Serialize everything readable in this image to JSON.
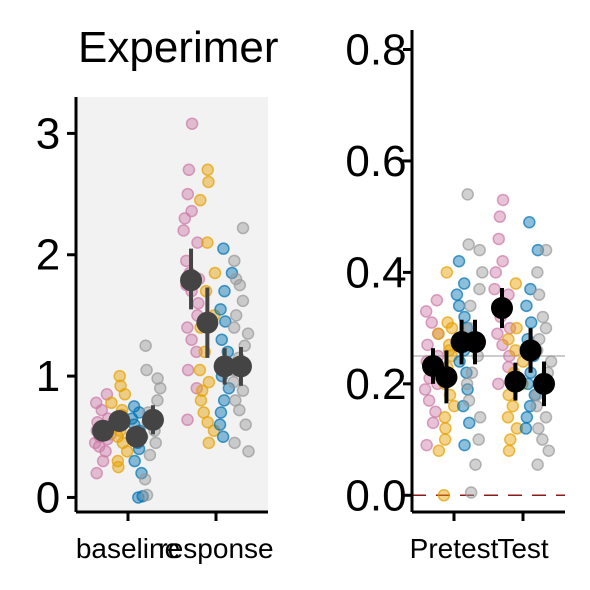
{
  "chart_data": [
    {
      "type": "scatter",
      "title": "Experimer",
      "xlabel": "",
      "ylabel": "",
      "categories": [
        "baseline",
        "response"
      ],
      "ylim": [
        -0.12,
        3.3
      ],
      "yticks": [
        0,
        1,
        2,
        3
      ],
      "yticklabels": [
        "0",
        "1",
        "2",
        "3"
      ],
      "panel_background": "#f2f2f2",
      "grid": false,
      "colors": {
        "pink": "#cc79a7",
        "orange": "#e69f00",
        "blue": "#0072b2",
        "gray": "#999999",
        "summary": "#444444"
      },
      "series": [
        {
          "color": "#cc79a7",
          "category_offset": -0.26,
          "points": {
            "baseline": [
              0.85,
              0.78,
              0.72,
              0.65,
              0.62,
              0.58,
              0.55,
              0.52,
              0.5,
              0.48,
              0.45,
              0.42,
              0.38,
              0.3,
              0.2
            ],
            "response": [
              3.08,
              2.7,
              2.5,
              2.36,
              2.3,
              2.2,
              2.1,
              1.95,
              1.85,
              1.8,
              1.75,
              1.7,
              1.6,
              1.5,
              1.4,
              1.3,
              1.2,
              1.05,
              0.9,
              0.64
            ]
          },
          "mean": {
            "baseline": 0.55,
            "response": 1.79
          },
          "ci": {
            "baseline": [
              0.5,
              0.6
            ],
            "response": [
              1.55,
              2.05
            ]
          }
        },
        {
          "color": "#e69f00",
          "category_offset": -0.09,
          "points": {
            "baseline": [
              1.0,
              0.92,
              0.85,
              0.78,
              0.72,
              0.68,
              0.62,
              0.55,
              0.5,
              0.45,
              0.38,
              0.3,
              0.25
            ],
            "response": [
              2.7,
              2.6,
              2.45,
              2.1,
              1.85,
              1.7,
              1.5,
              1.4,
              1.2,
              1.05,
              0.95,
              0.88,
              0.8,
              0.7,
              0.62,
              0.55,
              0.45
            ]
          },
          "mean": {
            "baseline": 0.63,
            "response": 1.44
          },
          "ci": {
            "baseline": [
              0.57,
              0.71
            ],
            "response": [
              1.15,
              1.73
            ]
          }
        },
        {
          "color": "#0072b2",
          "category_offset": 0.09,
          "points": {
            "baseline": [
              0.75,
              0.7,
              0.65,
              0.6,
              0.55,
              0.5,
              0.45,
              0.4,
              0.3,
              0.2,
              0.01,
              0.0
            ],
            "response": [
              2.05,
              1.85,
              1.7,
              1.55,
              1.45,
              1.3,
              1.2,
              1.1,
              1.0,
              0.9,
              0.8,
              0.7,
              0.6,
              0.5
            ]
          },
          "mean": {
            "baseline": 0.5,
            "response": 1.08
          },
          "ci": {
            "baseline": [
              0.42,
              0.58
            ],
            "response": [
              0.93,
              1.23
            ]
          }
        },
        {
          "color": "#999999",
          "category_offset": 0.26,
          "points": {
            "baseline": [
              1.25,
              1.05,
              0.98,
              0.9,
              0.8,
              0.7,
              0.62,
              0.55,
              0.45,
              0.35,
              0.15,
              0.02
            ],
            "response": [
              2.22,
              1.95,
              1.8,
              1.75,
              1.62,
              1.5,
              1.4,
              1.35,
              1.25,
              1.15,
              1.05,
              0.95,
              0.88,
              0.8,
              0.72,
              0.6,
              0.45,
              0.38
            ]
          },
          "mean": {
            "baseline": 0.64,
            "response": 1.08
          },
          "ci": {
            "baseline": [
              0.52,
              0.76
            ],
            "response": [
              0.92,
              1.24
            ]
          }
        }
      ]
    },
    {
      "type": "scatter",
      "title": "",
      "xlabel": "",
      "ylabel": "",
      "categories": [
        "Pretest",
        "Test"
      ],
      "ylim": [
        -0.03,
        0.835
      ],
      "yticks": [
        0,
        0.2,
        0.4,
        0.6,
        0.8
      ],
      "yticklabels": [
        "0.0",
        "0.2",
        "0.4",
        "0.6",
        "0.8"
      ],
      "panel_background": "#ffffff",
      "grid": false,
      "reference_lines": [
        {
          "y": 0.25,
          "color": "#bbbbbb",
          "style": "solid"
        },
        {
          "y": 0.0,
          "color": "#8b1a1a",
          "style": "dashed"
        }
      ],
      "series": [
        {
          "color": "#cc79a7",
          "category_offset": -0.25,
          "points": {
            "Pretest": [
              0.35,
              0.33,
              0.31,
              0.29,
              0.27,
              0.25,
              0.24,
              0.22,
              0.21,
              0.2,
              0.19,
              0.17,
              0.15,
              0.13,
              0.09
            ],
            "Test": [
              0.53,
              0.5,
              0.46,
              0.42,
              0.4,
              0.37,
              0.36,
              0.34,
              0.32,
              0.3,
              0.29,
              0.27,
              0.25,
              0.23,
              0.2
            ]
          },
          "mean": {
            "Pretest": 0.232,
            "Test": 0.336
          },
          "ci": {
            "Pretest": [
              0.2,
              0.264
            ],
            "Test": [
              0.3,
              0.372
            ]
          }
        },
        {
          "color": "#e69f00",
          "category_offset": -0.09,
          "points": {
            "Pretest": [
              0.4,
              0.31,
              0.3,
              0.29,
              0.27,
              0.26,
              0.25,
              0.23,
              0.2,
              0.18,
              0.16,
              0.14,
              0.12,
              0.1,
              0.08,
              0.0
            ],
            "Test": [
              0.38,
              0.3,
              0.28,
              0.26,
              0.24,
              0.22,
              0.2,
              0.18,
              0.16,
              0.14,
              0.12,
              0.1,
              0.08
            ]
          },
          "mean": {
            "Pretest": 0.212,
            "Test": 0.204
          },
          "ci": {
            "Pretest": [
              0.165,
              0.26
            ],
            "Test": [
              0.17,
              0.238
            ]
          }
        },
        {
          "color": "#0072b2",
          "category_offset": 0.09,
          "points": {
            "Pretest": [
              0.42,
              0.38,
              0.36,
              0.34,
              0.32,
              0.3,
              0.28,
              0.26,
              0.24,
              0.22,
              0.19,
              0.16,
              0.13,
              0.09
            ],
            "Test": [
              0.49,
              0.44,
              0.37,
              0.34,
              0.31,
              0.28,
              0.25,
              0.22,
              0.2,
              0.18,
              0.16,
              0.14,
              0.12
            ]
          },
          "mean": {
            "Pretest": 0.275,
            "Test": 0.26
          },
          "ci": {
            "Pretest": [
              0.235,
              0.315
            ],
            "Test": [
              0.22,
              0.3
            ]
          }
        },
        {
          "color": "#999999",
          "category_offset": 0.25,
          "points": {
            "Pretest": [
              0.54,
              0.45,
              0.44,
              0.4,
              0.37,
              0.34,
              0.3,
              0.28,
              0.25,
              0.22,
              0.2,
              0.17,
              0.14,
              0.1,
              0.055,
              0.005
            ],
            "Test": [
              0.44,
              0.4,
              0.36,
              0.32,
              0.3,
              0.28,
              0.26,
              0.24,
              0.22,
              0.2,
              0.18,
              0.16,
              0.14,
              0.12,
              0.1,
              0.08,
              0.055
            ]
          },
          "mean": {
            "Pretest": 0.275,
            "Test": 0.2
          },
          "ci": {
            "Pretest": [
              0.235,
              0.315
            ],
            "Test": [
              0.16,
              0.24
            ]
          }
        }
      ]
    }
  ]
}
